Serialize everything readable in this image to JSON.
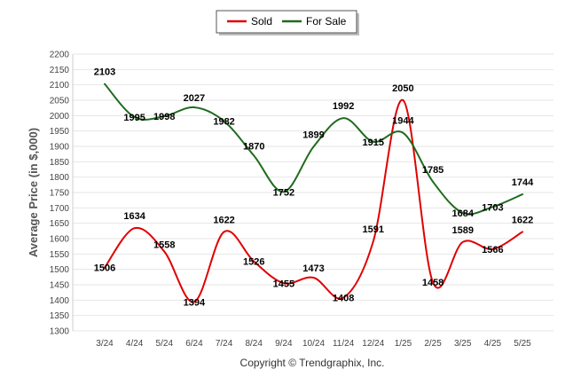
{
  "chart_data": {
    "type": "line",
    "title": "",
    "xlabel": "",
    "ylabel": "Average Price (in $,000)",
    "ylim": [
      1300,
      2200
    ],
    "ytick_step": 50,
    "grid": true,
    "legend_position": "top-center",
    "categories": [
      "3/24",
      "4/24",
      "5/24",
      "6/24",
      "7/24",
      "8/24",
      "9/24",
      "10/24",
      "11/24",
      "12/24",
      "1/25",
      "2/25",
      "3/25",
      "4/25",
      "5/25"
    ],
    "series": [
      {
        "name": "Sold",
        "color": "#e00000",
        "values": [
          1506,
          1634,
          1558,
          1394,
          1622,
          1526,
          1455,
          1473,
          1408,
          1591,
          2050,
          1458,
          1589,
          1566,
          1622
        ]
      },
      {
        "name": "For Sale",
        "color": "#1e6b1e",
        "values": [
          2103,
          1995,
          1998,
          2027,
          1982,
          1870,
          1752,
          1899,
          1992,
          1915,
          1944,
          1785,
          1684,
          1703,
          1744
        ]
      }
    ]
  },
  "footer": {
    "credit": "Copyright © Trendgraphix, Inc."
  }
}
